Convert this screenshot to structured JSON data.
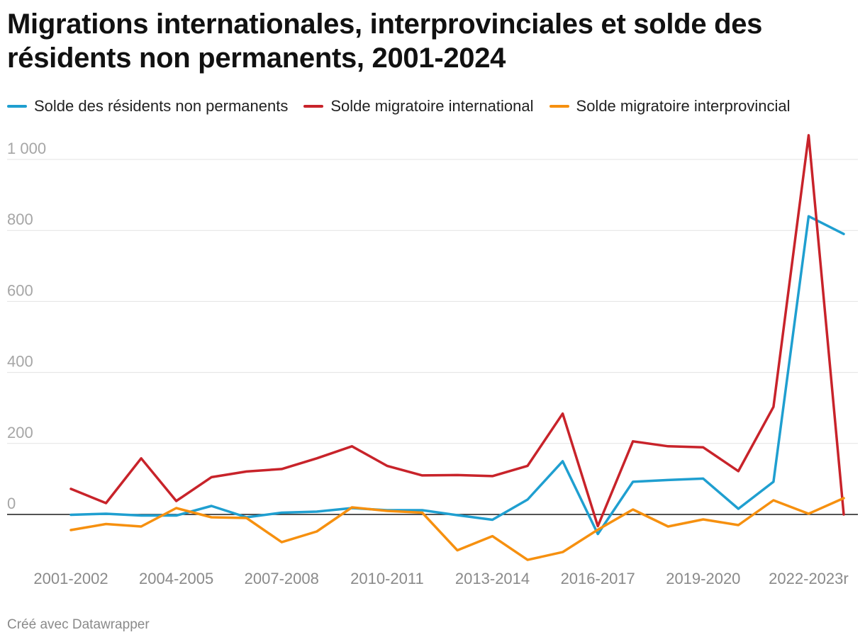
{
  "title": "Migrations internationales, interprovinciales et solde des résidents non permanents, 2001-2024",
  "footer": "Créé avec Datawrapper",
  "colors": {
    "npr": "#1f9fd0",
    "international": "#c8232a",
    "interprovincial": "#f6900f"
  },
  "chart_data": {
    "type": "line",
    "title": "Migrations internationales, interprovinciales et solde des résidents non permanents, 2001-2024",
    "x": [
      "2001-2002",
      "2002-2003",
      "2003-2004",
      "2004-2005",
      "2005-2006",
      "2006-2007",
      "2007-2008",
      "2008-2009",
      "2009-2010",
      "2010-2011",
      "2011-2012",
      "2012-2013",
      "2013-2014",
      "2014-2015",
      "2015-2016",
      "2016-2017",
      "2017-2018",
      "2018-2019",
      "2019-2020",
      "2020-2021",
      "2021-2022",
      "2022-2023r",
      "2023-2024"
    ],
    "x_tick_labels": [
      "2001-2002",
      "2004-2005",
      "2007-2008",
      "2010-2011",
      "2013-2014",
      "2016-2017",
      "2019-2020",
      "2022-2023r"
    ],
    "y_ticks": [
      0,
      200,
      400,
      600,
      800,
      1000
    ],
    "y_tick_labels": [
      "0",
      "200",
      "400",
      "600",
      "800",
      "1 000"
    ],
    "ylim": [
      -140,
      1080
    ],
    "grid": true,
    "legend_position": "top",
    "series": [
      {
        "name": "Solde des résidents non permanents",
        "color": "#1f9fd0",
        "values": [
          -1,
          2,
          -3,
          -3,
          24,
          -8,
          5,
          8,
          18,
          12,
          12,
          -2,
          -15,
          42,
          150,
          -55,
          92,
          97,
          101,
          16,
          92,
          840,
          790
        ]
      },
      {
        "name": "Solde migratoire international",
        "color": "#c8232a",
        "values": [
          72,
          32,
          158,
          38,
          105,
          121,
          128,
          158,
          192,
          137,
          110,
          111,
          108,
          137,
          284,
          -33,
          206,
          192,
          189,
          122,
          303,
          1068,
          0
        ]
      },
      {
        "name": "Solde migratoire interprovincial",
        "color": "#f6900f",
        "values": [
          -44,
          -27,
          -34,
          18,
          -8,
          -10,
          -78,
          -48,
          20,
          10,
          5,
          -101,
          -61,
          -128,
          -106,
          -43,
          14,
          -34,
          -14,
          -30,
          40,
          2,
          46
        ]
      }
    ]
  }
}
